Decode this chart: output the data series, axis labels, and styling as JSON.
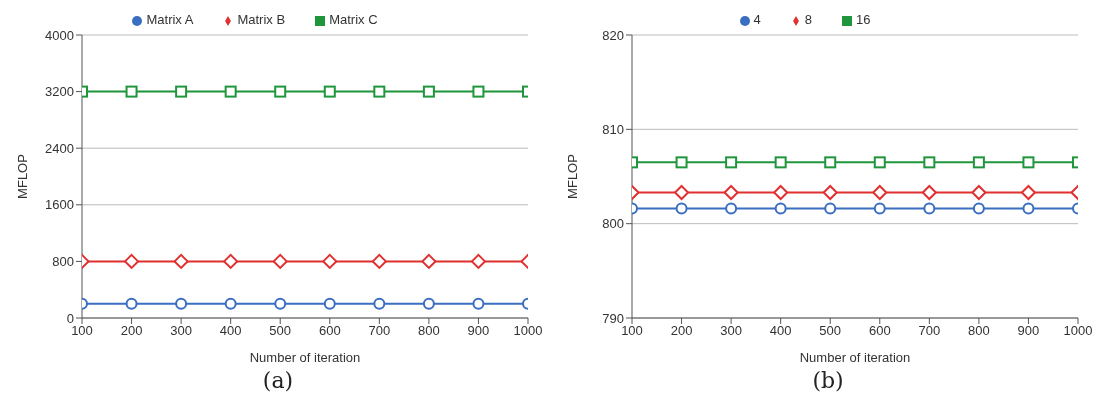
{
  "chart_data": [
    {
      "type": "line",
      "xlabel": "Number of iteration",
      "ylabel": "MFLOP",
      "x": [
        100,
        200,
        300,
        400,
        500,
        600,
        700,
        800,
        900,
        1000
      ],
      "xlim": [
        100,
        1000
      ],
      "xticks": [
        100,
        200,
        300,
        400,
        500,
        600,
        700,
        800,
        900,
        1000
      ],
      "ylim": [
        0,
        4000
      ],
      "yticks": [
        0,
        800,
        1600,
        2400,
        3200,
        4000
      ],
      "grid": "y",
      "legend": "top",
      "annotations": [
        "(a)"
      ],
      "series": [
        {
          "name": "Matrix A",
          "color": "#3a6ec0",
          "marker": "circle",
          "values": [
            200,
            200,
            200,
            200,
            200,
            200,
            200,
            200,
            200,
            200
          ]
        },
        {
          "name": "Matrix B",
          "color": "#e03030",
          "marker": "diamond",
          "values": [
            800,
            800,
            800,
            800,
            800,
            800,
            800,
            800,
            800,
            800
          ]
        },
        {
          "name": "Matrix C",
          "color": "#20963c",
          "marker": "square",
          "values": [
            3200,
            3200,
            3200,
            3200,
            3200,
            3200,
            3200,
            3200,
            3200,
            3200
          ]
        }
      ]
    },
    {
      "type": "line",
      "xlabel": "Number of iteration",
      "ylabel": "MFLOP",
      "x": [
        100,
        200,
        300,
        400,
        500,
        600,
        700,
        800,
        900,
        1000
      ],
      "xlim": [
        100,
        1000
      ],
      "xticks": [
        100,
        200,
        300,
        400,
        500,
        600,
        700,
        800,
        900,
        1000
      ],
      "ylim": [
        790,
        820
      ],
      "yticks": [
        790,
        800,
        810,
        820
      ],
      "grid": "y",
      "legend": "top",
      "annotations": [
        "(b)"
      ],
      "series": [
        {
          "name": "4",
          "color": "#3a6ec0",
          "marker": "circle",
          "values": [
            801.6,
            801.6,
            801.6,
            801.6,
            801.6,
            801.6,
            801.6,
            801.6,
            801.6,
            801.6
          ]
        },
        {
          "name": "8",
          "color": "#e03030",
          "marker": "diamond",
          "values": [
            803.3,
            803.3,
            803.3,
            803.3,
            803.3,
            803.3,
            803.3,
            803.3,
            803.3,
            803.3
          ]
        },
        {
          "name": "16",
          "color": "#20963c",
          "marker": "square",
          "values": [
            806.5,
            806.5,
            806.5,
            806.5,
            806.5,
            806.5,
            806.5,
            806.5,
            806.5,
            806.5
          ]
        }
      ]
    }
  ]
}
